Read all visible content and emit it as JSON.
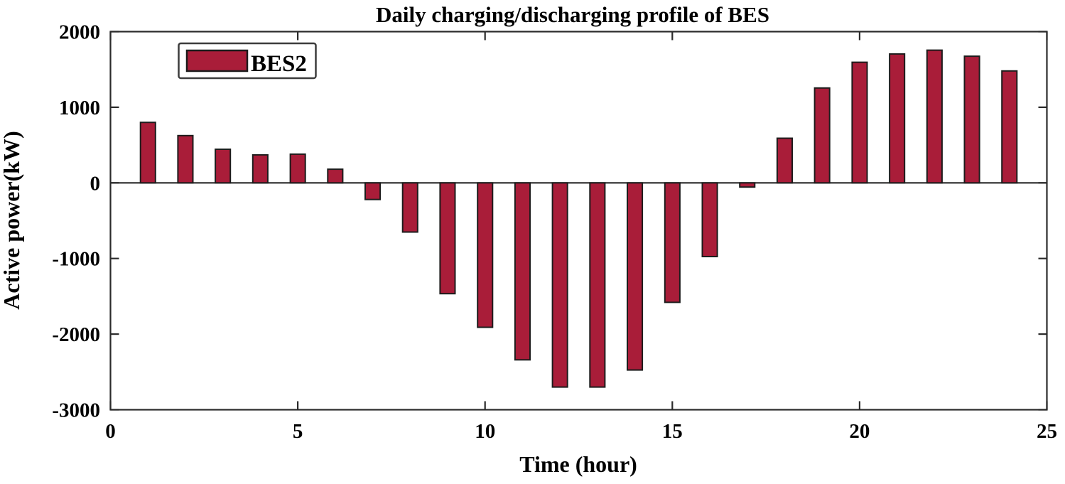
{
  "figure": {
    "background": "#ffffff"
  },
  "chart_data": {
    "type": "bar",
    "title": "Daily charging/discharging profile of BES",
    "xlabel": "Time (hour)",
    "ylabel": "Active power(kW)",
    "xlim": [
      0,
      25
    ],
    "ylim": [
      -3000,
      2000
    ],
    "xticks": [
      0,
      5,
      10,
      15,
      20,
      25
    ],
    "yticks": [
      2000,
      1000,
      0,
      -1000,
      -2000,
      -3000
    ],
    "grid": false,
    "box": true,
    "tick_direction": "in",
    "bar_width_fraction": 0.4,
    "categories": [
      1,
      2,
      3,
      4,
      5,
      6,
      7,
      8,
      9,
      10,
      11,
      12,
      13,
      14,
      15,
      16,
      17,
      18,
      19,
      20,
      21,
      22,
      23,
      24
    ],
    "series": [
      {
        "name": "BES2",
        "values": [
          800,
          625,
          445,
          370,
          380,
          180,
          -220,
          -650,
          -1465,
          -1910,
          -2340,
          -2700,
          -2700,
          -2475,
          -1580,
          -975,
          -55,
          590,
          1255,
          1595,
          1705,
          1755,
          1675,
          1480
        ]
      }
    ],
    "legend": {
      "position": "top-left",
      "entries": [
        "BES2"
      ]
    },
    "colors": {
      "bar_fill": "#A91D39",
      "bar_edge": "#1C1C1C",
      "axis": "#2B2B2B",
      "zero_line": "#2B2B2B",
      "text": "#000000",
      "legend_border": "#3C3C3C",
      "legend_background": "#FFFFFF"
    }
  }
}
